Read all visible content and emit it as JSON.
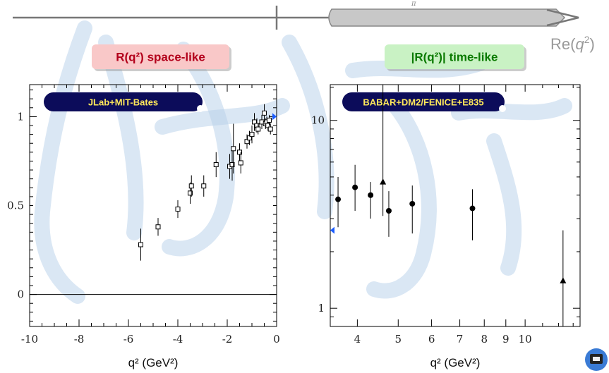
{
  "header": {
    "axis_label": "Re(q²)",
    "axis_label_base": "Re(",
    "axis_label_var": "q",
    "axis_label_exp": "2",
    "axis_label_close": ")",
    "top_small_text": "π",
    "colors": {
      "axis": "#777777",
      "cut_fill": "#c8c8c8"
    }
  },
  "watermark": {
    "description_icon": "calligraphy-watermark-icon",
    "color": "#aecbe8"
  },
  "corner_logo": {
    "icon": "university-logo-icon"
  },
  "chart_data": [
    {
      "type": "scatter",
      "label_box": {
        "text_main": "R(q²) space-like",
        "color_bg": "#f9c8c8",
        "color_text": "#b3001b"
      },
      "badge": "JLab+MIT-Bates",
      "xlabel": "q² (GeV²)",
      "xlim": [
        -10,
        0
      ],
      "ylim": [
        -0.18,
        1.18
      ],
      "x_ticks": [
        -10,
        -8,
        -6,
        -4,
        -2,
        0
      ],
      "x_tick_labels": [
        "-10",
        "-8",
        "-6",
        "-4",
        "-2",
        "0"
      ],
      "y_ticks": [
        0,
        0.5,
        1
      ],
      "y_tick_labels": [
        "0",
        "0.5",
        "1"
      ],
      "reference_line_y": 0,
      "series": [
        {
          "marker": "open-square",
          "points": [
            {
              "x": -5.5,
              "y": 0.28,
              "err": 0.09
            },
            {
              "x": -4.8,
              "y": 0.38,
              "err": 0.05
            },
            {
              "x": -4.0,
              "y": 0.48,
              "err": 0.05
            },
            {
              "x": -3.5,
              "y": 0.57,
              "err": 0.06
            },
            {
              "x": -3.45,
              "y": 0.61,
              "err": 0.06
            },
            {
              "x": -2.95,
              "y": 0.61,
              "err": 0.06
            },
            {
              "x": -2.45,
              "y": 0.73,
              "err": 0.07
            },
            {
              "x": -1.9,
              "y": 0.72,
              "err": 0.07
            },
            {
              "x": -1.8,
              "y": 0.73,
              "err": 0.09
            },
            {
              "x": -1.75,
              "y": 0.82,
              "err": 0.14
            },
            {
              "x": -1.5,
              "y": 0.8,
              "err": 0.05
            },
            {
              "x": -1.45,
              "y": 0.74,
              "err": 0.06
            },
            {
              "x": -1.2,
              "y": 0.86,
              "err": 0.04
            },
            {
              "x": -1.1,
              "y": 0.88,
              "err": 0.04
            },
            {
              "x": -1.0,
              "y": 0.9,
              "err": 0.05
            },
            {
              "x": -0.9,
              "y": 0.97,
              "err": 0.05
            },
            {
              "x": -0.8,
              "y": 0.95,
              "err": 0.04
            },
            {
              "x": -0.75,
              "y": 0.93,
              "err": 0.03
            },
            {
              "x": -0.6,
              "y": 0.97,
              "err": 0.04
            },
            {
              "x": -0.5,
              "y": 1.02,
              "err": 0.05
            },
            {
              "x": -0.45,
              "y": 0.96,
              "err": 0.03
            },
            {
              "x": -0.4,
              "y": 0.97,
              "err": 0.03
            },
            {
              "x": -0.35,
              "y": 0.95,
              "err": 0.03
            },
            {
              "x": -0.3,
              "y": 0.98,
              "err": 0.03
            },
            {
              "x": -0.25,
              "y": 0.93,
              "err": 0.03
            }
          ]
        }
      ],
      "edge_marker": {
        "y": 1.0,
        "color": "#1a5cff"
      }
    },
    {
      "type": "scatter",
      "label_box": {
        "text_main": "|R(q²)| time-like",
        "color_bg": "#c9f2c4",
        "color_text": "#0a7a00"
      },
      "badge": "BABAR+DM2/FENICE+E835",
      "xlabel": "q² (GeV²)",
      "x_scale": "log",
      "y_scale": "log",
      "xlim": [
        3.45,
        13.5
      ],
      "ylim": [
        0.8,
        15.5
      ],
      "x_ticks": [
        4,
        5,
        6,
        7,
        8,
        9,
        10
      ],
      "x_tick_labels": [
        "4",
        "5",
        "6",
        "7",
        "8",
        "9",
        "10"
      ],
      "y_ticks": [
        1,
        10
      ],
      "y_tick_labels": [
        "1",
        "10"
      ],
      "series": [
        {
          "marker": "filled-circle",
          "points": [
            {
              "x": 3.6,
              "y": 3.8,
              "lo": 2.7,
              "hi": 5.0
            },
            {
              "x": 3.95,
              "y": 4.4,
              "lo": 3.3,
              "hi": 5.8
            },
            {
              "x": 4.3,
              "y": 4.0,
              "lo": 3.0,
              "hi": 4.7
            },
            {
              "x": 4.75,
              "y": 3.3,
              "lo": 2.4,
              "hi": 4.2
            },
            {
              "x": 5.4,
              "y": 3.6,
              "lo": 2.5,
              "hi": 4.5
            },
            {
              "x": 7.5,
              "y": 3.4,
              "lo": 2.3,
              "hi": 4.3
            }
          ]
        },
        {
          "marker": "filled-triangle",
          "points": [
            {
              "x": 4.6,
              "y": 4.7,
              "lo": 3.1,
              "hi": 15.5
            },
            {
              "x": 12.3,
              "y": 1.4,
              "lo": 0.8,
              "hi": 2.6
            }
          ]
        }
      ],
      "edge_marker": {
        "y": 2.6,
        "color": "#1a5cff"
      }
    }
  ]
}
